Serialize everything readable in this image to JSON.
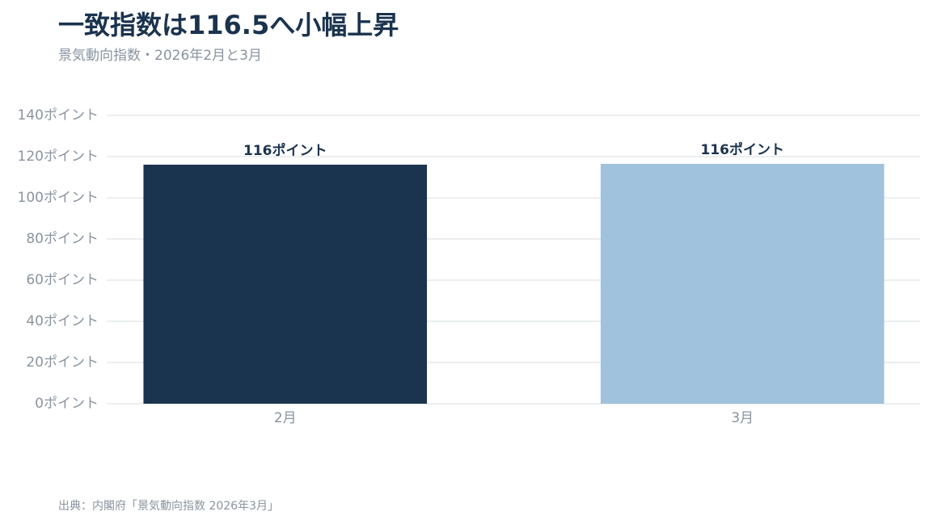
{
  "chart_data": {
    "type": "bar",
    "title": "一致指数は116.5へ小幅上昇",
    "subtitle": "景気動向指数・2026年2月と3月",
    "source": "出典：内閣府「景気動向指数 2026年3月」",
    "categories": [
      "2月",
      "3月"
    ],
    "values": [
      116.1,
      116.5
    ],
    "value_labels": [
      "116ポイント",
      "116ポイント"
    ],
    "colors": [
      "#1a334e",
      "#a0c2dd"
    ],
    "ylim": [
      0,
      140
    ],
    "yticks": [
      {
        "value": 0,
        "label": "0ポイント"
      },
      {
        "value": 20,
        "label": "20ポイント"
      },
      {
        "value": 40,
        "label": "40ポイント"
      },
      {
        "value": 60,
        "label": "60ポイント"
      },
      {
        "value": 80,
        "label": "80ポイント"
      },
      {
        "value": 100,
        "label": "100ポイント"
      },
      {
        "value": 120,
        "label": "120ポイント"
      },
      {
        "value": 140,
        "label": "140ポイント"
      }
    ],
    "grid": true
  }
}
